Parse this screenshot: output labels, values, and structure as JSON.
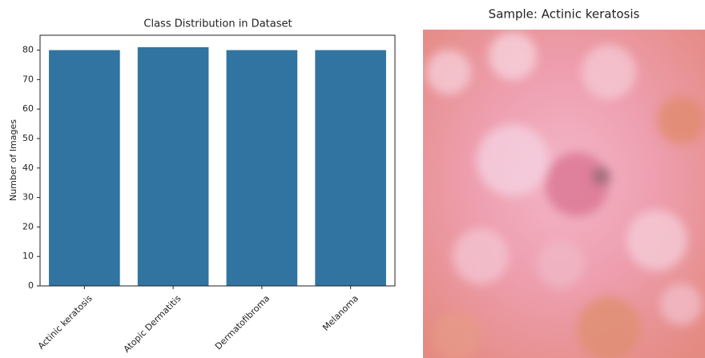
{
  "chart_data": {
    "type": "bar",
    "title": "Class Distribution in Dataset",
    "y_label": "Number of Images",
    "categories": [
      "Actinic keratosis",
      "Atopic Dermatitis",
      "Dermatofibroma",
      "Melanoma"
    ],
    "values": [
      80,
      81,
      80,
      80
    ],
    "color": "#3274a1",
    "ylim": [
      0,
      85.05
    ],
    "yticks": [
      0,
      10,
      20,
      30,
      40,
      50,
      60,
      70,
      80
    ],
    "grid": false
  },
  "sample_image": {
    "title": "Sample: Actinic keratosis"
  }
}
